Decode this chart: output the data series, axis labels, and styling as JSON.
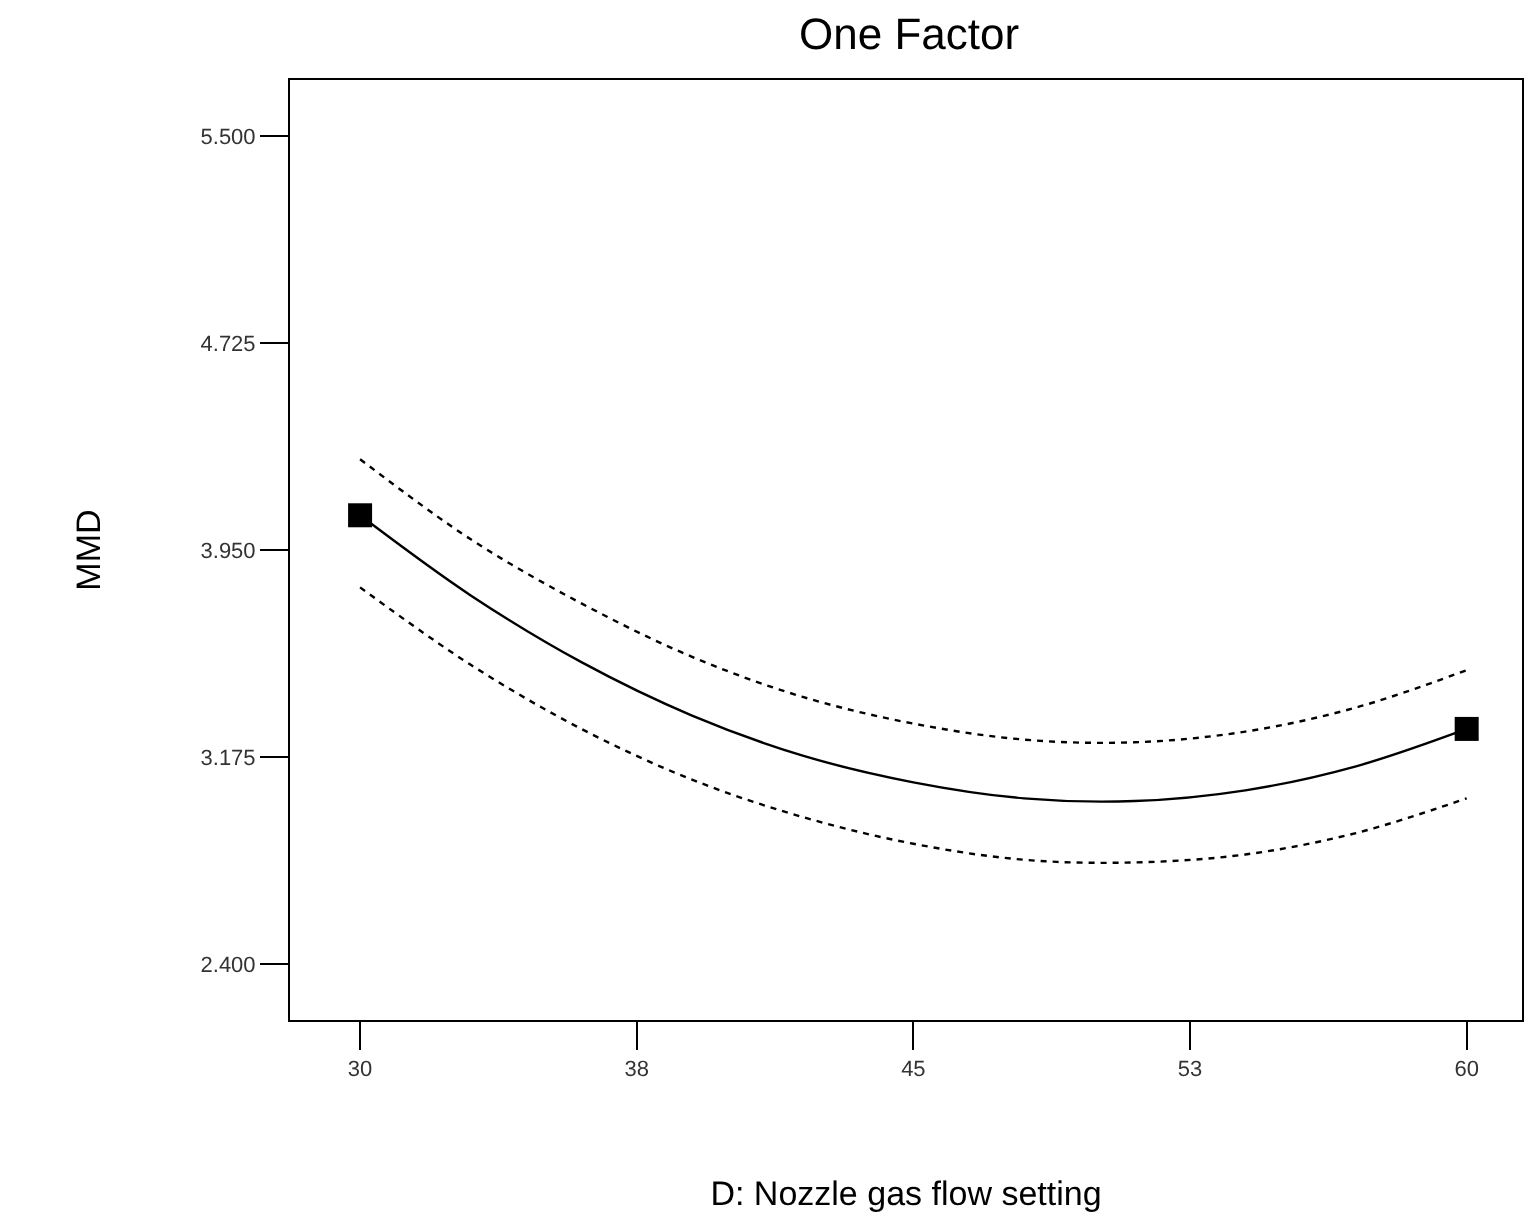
{
  "chart_data": {
    "type": "line",
    "title": "One Factor",
    "xlabel": "D: Nozzle gas flow setting",
    "ylabel": "MMD",
    "xlim": [
      28.1,
      61.5
    ],
    "ylim": [
      2.19,
      5.71
    ],
    "xticks": [
      30,
      {
        "value": 37.5,
        "label": "38"
      },
      45,
      {
        "value": 52.5,
        "label": "53"
      },
      60
    ],
    "yticks": [
      {
        "value": 2.4,
        "label": "2.400"
      },
      {
        "value": 3.175,
        "label": "3.175"
      },
      {
        "value": 3.95,
        "label": "3.950"
      },
      {
        "value": 4.725,
        "label": "4.725"
      },
      {
        "value": 5.5,
        "label": "5.500"
      }
    ],
    "series": [
      {
        "color": "#000000",
        "line_style": "solid",
        "marker": "none",
        "x": [
          30,
          33,
          36,
          39,
          42,
          45,
          48,
          51,
          54,
          57,
          60
        ],
        "values": [
          4.08,
          3.78,
          3.53,
          3.33,
          3.18,
          3.08,
          3.02,
          3.01,
          3.05,
          3.14,
          3.28
        ]
      },
      {
        "color": "#000000",
        "line_style": "dotted",
        "marker": "none",
        "x": [
          30,
          33,
          36,
          39,
          42,
          45,
          48,
          51,
          54,
          57,
          60
        ],
        "values": [
          4.29,
          3.99,
          3.75,
          3.55,
          3.4,
          3.3,
          3.24,
          3.23,
          3.27,
          3.36,
          3.5
        ]
      },
      {
        "color": "#000000",
        "line_style": "dotted",
        "marker": "none",
        "x": [
          30,
          33,
          36,
          39,
          42,
          45,
          48,
          51,
          54,
          57,
          60
        ],
        "values": [
          3.81,
          3.52,
          3.28,
          3.09,
          2.95,
          2.85,
          2.79,
          2.78,
          2.81,
          2.89,
          3.02
        ]
      },
      {
        "type": "scatter",
        "color": "#000000",
        "marker": "square",
        "x": [
          30,
          60
        ],
        "values": [
          4.08,
          3.28
        ]
      }
    ]
  }
}
